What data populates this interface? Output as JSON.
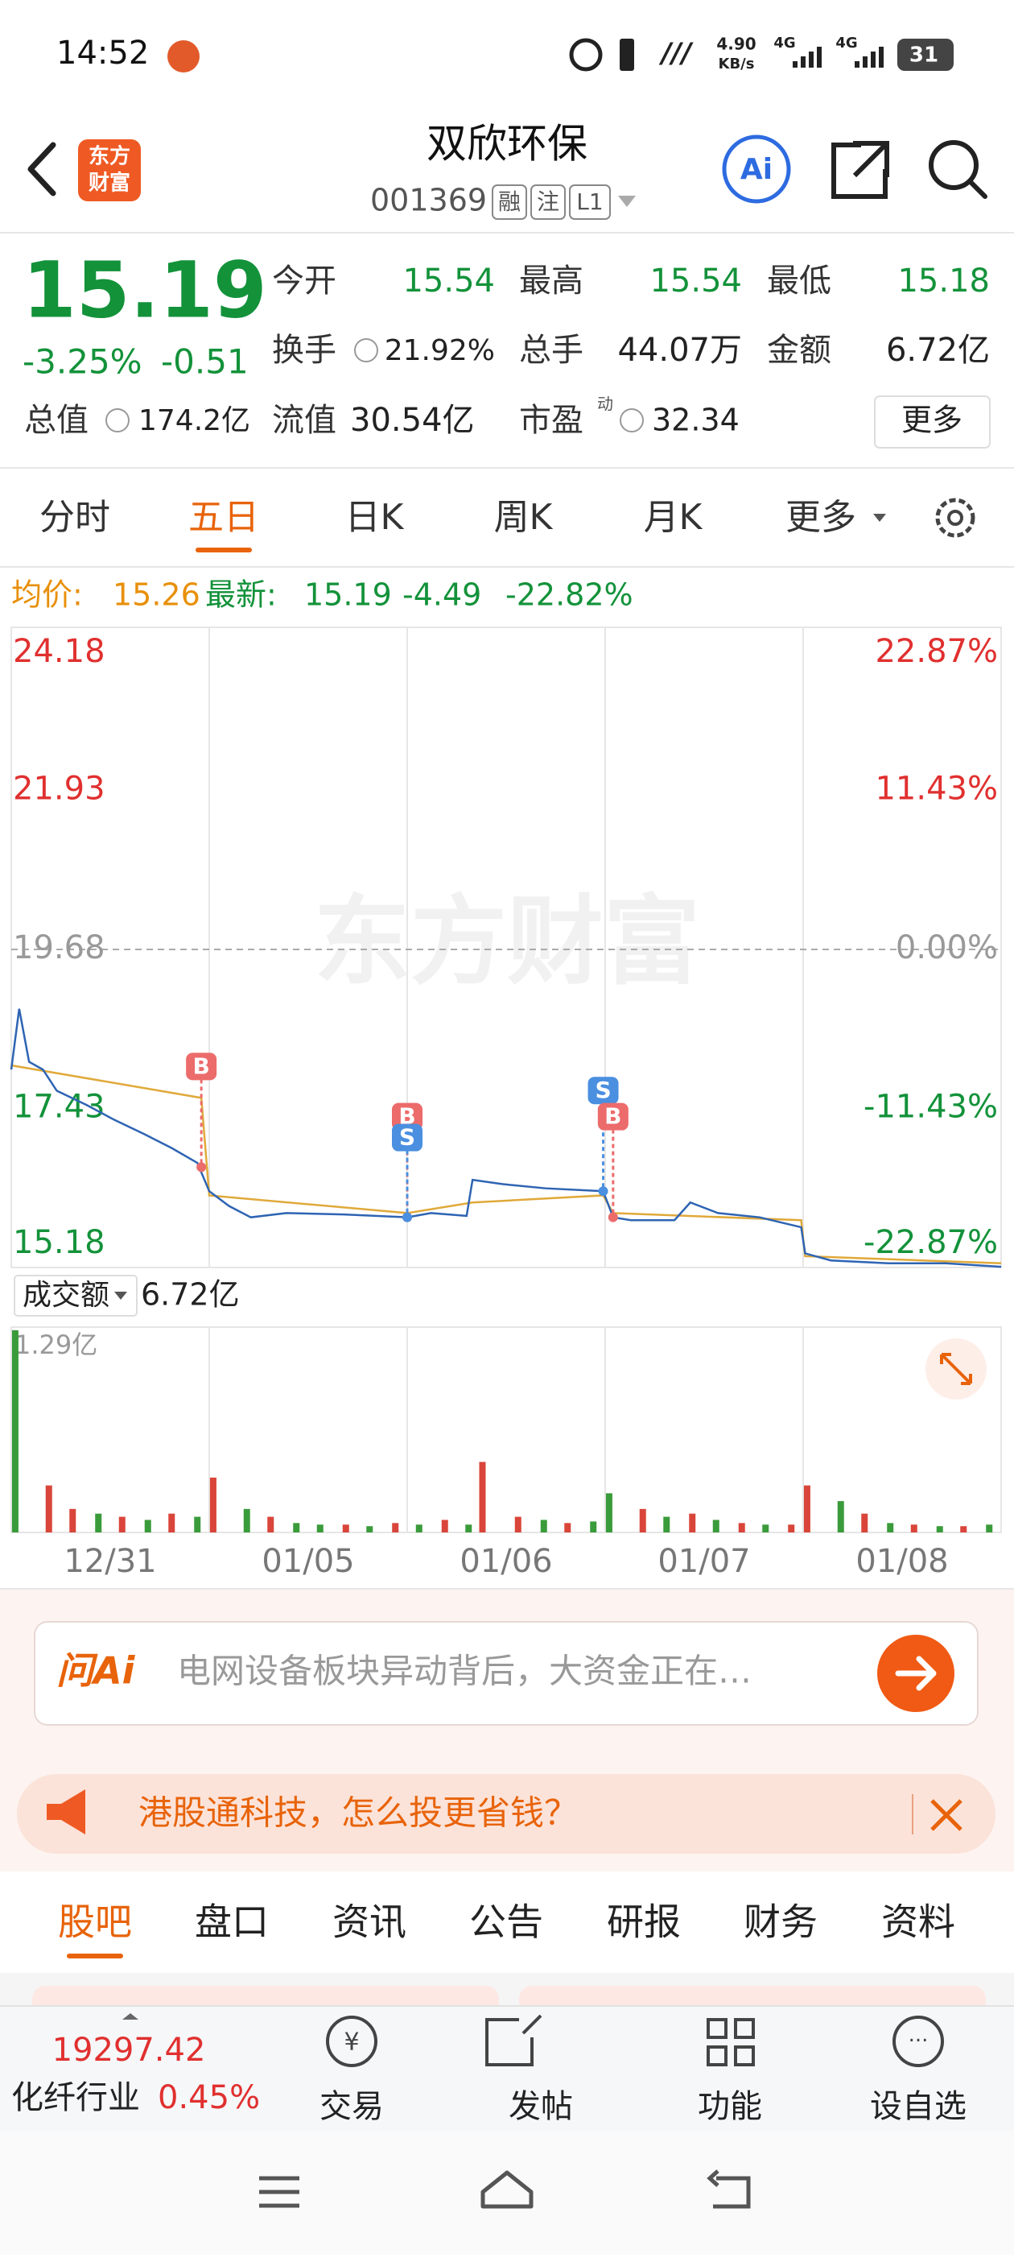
{
  "status_bar": {
    "time": "14:52",
    "net_speed": "4.90",
    "net_unit": "KB/s",
    "network1": "4G",
    "network2": "4G",
    "battery": "31"
  },
  "header": {
    "logo_line1": "东方",
    "logo_line2": "财富",
    "title": "双欣环保",
    "code": "001369",
    "badges": [
      "融",
      "注",
      "L1"
    ],
    "ai": "Ai"
  },
  "quote": {
    "price": "15.19",
    "change_pct": "-3.25%",
    "change": "-0.51",
    "open_label": "今开",
    "open": "15.54",
    "high_label": "最高",
    "high": "15.54",
    "low_label": "最低",
    "low": "15.18",
    "turnover_label": "换手",
    "turnover": "21.92%",
    "volume_label": "总手",
    "volume": "44.07万",
    "amount_label": "金额",
    "amount": "6.72亿",
    "mcap_label": "总值",
    "mcap": "174.2亿",
    "float_label": "流值",
    "float": "30.54亿",
    "pe_label": "市盈",
    "pe_sup": "动",
    "pe": "32.34",
    "more": "更多"
  },
  "tabs": [
    "分时",
    "五日",
    "日K",
    "周K",
    "月K",
    "更多"
  ],
  "chart_info": {
    "avg_label": "均价:",
    "avg": "15.26",
    "latest_label": "最新:",
    "latest": "15.19",
    "change": "-4.49",
    "change_pct": "-22.82%"
  },
  "watermark": "东方财富",
  "volume_header": {
    "label": "成交额",
    "value": "6.72亿"
  },
  "chart_data": [
    {
      "type": "line",
      "xlim": [
        0,
        5
      ],
      "xgrid": [
        1,
        2,
        3,
        4
      ],
      "ylim": [
        15.18,
        24.18
      ],
      "yticks": [
        15.18,
        17.43,
        19.68,
        21.93,
        24.18
      ],
      "y2lim": [
        -22.87,
        22.87
      ],
      "y2ticks": [
        {
          "value": -22.87,
          "label": "-22.87%"
        },
        {
          "value": -11.43,
          "label": "-11.43%"
        },
        {
          "value": 0,
          "label": "0.00%"
        },
        {
          "value": 11.43,
          "label": "11.43%"
        },
        {
          "value": 22.87,
          "label": "22.87%"
        }
      ],
      "series": [
        {
          "color": "#2e64b3",
          "x": [
            0,
            0.04,
            0.09,
            0.16,
            0.23,
            0.38,
            0.52,
            0.67,
            0.81,
            0.94,
            1.0,
            1.1,
            1.21,
            1.39,
            1.68,
            2.0,
            2.12,
            2.3,
            2.33,
            2.48,
            2.7,
            2.99,
            3.04,
            3.13,
            3.35,
            3.43,
            3.57,
            3.78,
            3.99,
            4.01,
            4.14,
            4.43,
            4.72,
            5.0
          ],
          "values": [
            17.98,
            18.84,
            18.09,
            17.98,
            17.68,
            17.48,
            17.27,
            17.07,
            16.87,
            16.66,
            16.26,
            16.05,
            15.89,
            15.95,
            15.93,
            15.89,
            15.95,
            15.91,
            16.42,
            16.36,
            16.3,
            16.26,
            15.89,
            15.85,
            15.85,
            16.1,
            15.95,
            15.89,
            15.75,
            15.38,
            15.28,
            15.24,
            15.24,
            15.19
          ]
        },
        {
          "color": "#e0a93a",
          "x": [
            0,
            0.96,
            1.0,
            2.0,
            2.33,
            2.99,
            3.04,
            3.99,
            4.01,
            5.0
          ],
          "values": [
            18.04,
            17.58,
            16.2,
            15.95,
            16.1,
            16.2,
            15.95,
            15.85,
            15.34,
            15.24
          ]
        }
      ],
      "markers": [
        {
          "label": "B",
          "x": 0.96,
          "value": 16.6,
          "color": "#ec6b6b"
        },
        {
          "label": "B",
          "x": 2.0,
          "value": 15.89,
          "color": "#ec6b6b"
        },
        {
          "label": "S",
          "x": 2.0,
          "value": 15.89,
          "color": "#4a8fe0"
        },
        {
          "label": "S",
          "x": 2.99,
          "value": 16.26,
          "color": "#4a8fe0"
        },
        {
          "label": "B",
          "x": 3.04,
          "value": 15.89,
          "color": "#ec6b6b"
        }
      ]
    },
    {
      "type": "bar",
      "xlim": [
        0,
        5
      ],
      "xgrid": [
        1,
        2,
        3,
        4
      ],
      "ylim": [
        0,
        1.29
      ],
      "yticks": [
        {
          "value": 1.29,
          "label": "1.29亿"
        }
      ],
      "xticks": [
        {
          "value": 0.5,
          "label": "12/31"
        },
        {
          "value": 1.5,
          "label": "01/05"
        },
        {
          "value": 2.5,
          "label": "01/06"
        },
        {
          "value": 3.5,
          "label": "01/07"
        },
        {
          "value": 4.5,
          "label": "01/08"
        }
      ],
      "x": [
        0.02,
        0.19,
        0.31,
        0.44,
        0.56,
        0.69,
        0.81,
        0.94,
        1.02,
        1.19,
        1.31,
        1.44,
        1.56,
        1.69,
        1.81,
        1.94,
        2.06,
        2.19,
        2.31,
        2.38,
        2.56,
        2.69,
        2.81,
        2.94,
        3.02,
        3.19,
        3.31,
        3.44,
        3.56,
        3.69,
        3.81,
        3.94,
        4.02,
        4.19,
        4.31,
        4.44,
        4.56,
        4.69,
        4.81,
        4.94
      ],
      "values": [
        1.29,
        0.3,
        0.15,
        0.12,
        0.1,
        0.08,
        0.12,
        0.1,
        0.35,
        0.15,
        0.1,
        0.06,
        0.05,
        0.05,
        0.04,
        0.06,
        0.05,
        0.08,
        0.05,
        0.45,
        0.1,
        0.08,
        0.06,
        0.07,
        0.25,
        0.15,
        0.1,
        0.12,
        0.08,
        0.06,
        0.05,
        0.05,
        0.3,
        0.2,
        0.12,
        0.06,
        0.05,
        0.04,
        0.04,
        0.05
      ],
      "bar_colors": [
        "#3a9b3a",
        "#d9453a",
        "#d9453a",
        "#3a9b3a",
        "#d9453a",
        "#3a9b3a",
        "#d9453a",
        "#3a9b3a",
        "#d9453a",
        "#3a9b3a",
        "#d9453a",
        "#3a9b3a",
        "#3a9b3a",
        "#d9453a",
        "#3a9b3a",
        "#d9453a",
        "#3a9b3a",
        "#d9453a",
        "#3a9b3a",
        "#d9453a",
        "#d9453a",
        "#3a9b3a",
        "#d9453a",
        "#3a9b3a",
        "#3a9b3a",
        "#d9453a",
        "#3a9b3a",
        "#d9453a",
        "#3a9b3a",
        "#d9453a",
        "#3a9b3a",
        "#d9453a",
        "#d9453a",
        "#3a9b3a",
        "#d9453a",
        "#3a9b3a",
        "#d9453a",
        "#3a9b3a",
        "#d9453a",
        "#3a9b3a"
      ]
    }
  ],
  "ai_box": {
    "brand": "问Ai",
    "text": "电网设备板块异动背后，大资金正在…"
  },
  "banner": {
    "text": "港股通科技，怎么投更省钱？"
  },
  "bottom_tabs": [
    "股吧",
    "盘口",
    "资讯",
    "公告",
    "研报",
    "财务",
    "资料"
  ],
  "footer": {
    "index_value": "19297.42",
    "industry": "化纤行业",
    "industry_pct": "0.45%",
    "actions": [
      "交易",
      "发帖",
      "功能",
      "设自选"
    ]
  }
}
